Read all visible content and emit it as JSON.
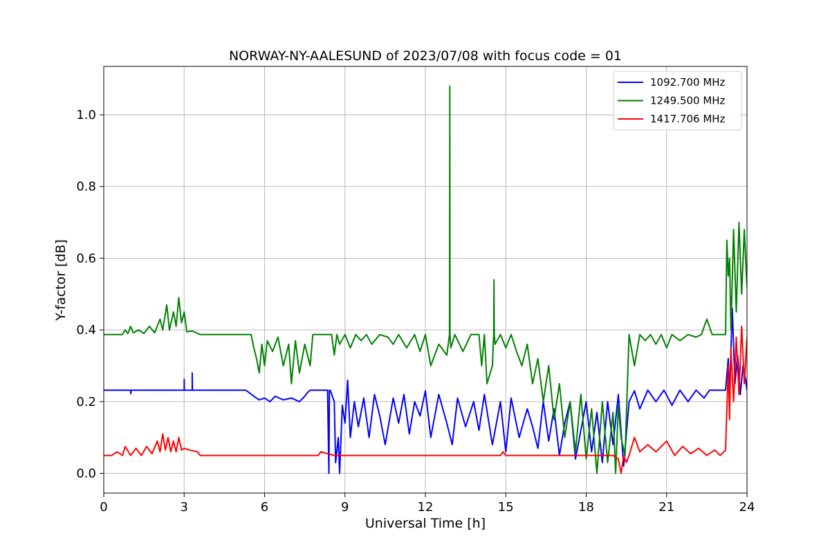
{
  "chart_data": {
    "type": "line",
    "title": "NORWAY-NY-AALESUND of 2023/07/08 with focus code = 01",
    "xlabel": "Universal Time [h]",
    "ylabel": "Y-factor [dB]",
    "xlim": [
      0,
      24
    ],
    "ylim": [
      -0.055,
      1.135
    ],
    "xticks": [
      0,
      3,
      6,
      9,
      12,
      15,
      18,
      21,
      24
    ],
    "xtick_labels": [
      "0",
      "3",
      "6",
      "9",
      "12",
      "15",
      "18",
      "21",
      "24"
    ],
    "yticks": [
      0.0,
      0.2,
      0.4,
      0.6,
      0.8,
      1.0
    ],
    "ytick_labels": [
      "0.0",
      "0.2",
      "0.4",
      "0.6",
      "0.8",
      "1.0"
    ],
    "grid": true,
    "legend_position": "top-right",
    "series": [
      {
        "name": "1092.700 MHz",
        "color": "#0000ff",
        "x": [
          0,
          1.0,
          1.01,
          1.02,
          3.0,
          3.0,
          3.01,
          3.3,
          3.3,
          3.31,
          5.3,
          5.6,
          5.8,
          6.0,
          6.2,
          6.4,
          6.7,
          7.0,
          7.3,
          7.5,
          7.6,
          7.7,
          8.0,
          8.35,
          8.4,
          8.42,
          8.45,
          8.6,
          8.65,
          8.75,
          8.8,
          8.9,
          9.0,
          9.1,
          9.2,
          9.35,
          9.5,
          9.7,
          9.9,
          10.1,
          10.3,
          10.5,
          10.8,
          11.0,
          11.2,
          11.4,
          11.6,
          11.8,
          12.0,
          12.2,
          12.5,
          12.8,
          13.0,
          13.2,
          13.5,
          13.8,
          14.0,
          14.2,
          14.5,
          14.8,
          15.0,
          15.2,
          15.5,
          15.8,
          16.0,
          16.2,
          16.4,
          16.6,
          16.8,
          17.0,
          17.2,
          17.4,
          17.6,
          17.8,
          18.0,
          18.2,
          18.4,
          18.6,
          18.8,
          19.0,
          19.2,
          19.4,
          19.6,
          19.8,
          20.0,
          20.3,
          20.6,
          20.9,
          21.2,
          21.5,
          21.8,
          22.1,
          22.4,
          22.6,
          22.8,
          23.0,
          23.2,
          23.3,
          23.35,
          23.45,
          23.55,
          23.65,
          23.75,
          23.85,
          23.95,
          24.0
        ],
        "y": [
          0.232,
          0.232,
          0.222,
          0.232,
          0.232,
          0.262,
          0.232,
          0.232,
          0.28,
          0.232,
          0.232,
          0.215,
          0.205,
          0.21,
          0.2,
          0.215,
          0.205,
          0.21,
          0.2,
          0.215,
          0.225,
          0.232,
          0.232,
          0.232,
          0.0,
          0.232,
          0.232,
          0.2,
          0.03,
          0.1,
          0.0,
          0.19,
          0.14,
          0.26,
          0.1,
          0.2,
          0.13,
          0.21,
          0.1,
          0.22,
          0.16,
          0.08,
          0.21,
          0.14,
          0.22,
          0.11,
          0.2,
          0.16,
          0.23,
          0.1,
          0.22,
          0.14,
          0.08,
          0.21,
          0.13,
          0.2,
          0.12,
          0.22,
          0.08,
          0.2,
          0.06,
          0.21,
          0.1,
          0.18,
          0.13,
          0.07,
          0.2,
          0.09,
          0.18,
          0.05,
          0.14,
          0.2,
          0.04,
          0.12,
          0.2,
          0.06,
          0.17,
          0.03,
          0.2,
          0.08,
          0.22,
          0.02,
          0.2,
          0.23,
          0.18,
          0.232,
          0.2,
          0.232,
          0.19,
          0.232,
          0.2,
          0.232,
          0.21,
          0.232,
          0.232,
          0.232,
          0.232,
          0.32,
          0.22,
          0.46,
          0.25,
          0.33,
          0.22,
          0.3,
          0.26,
          0.232
        ]
      },
      {
        "name": "1249.500 MHz",
        "color": "#008000",
        "x": [
          0,
          0.7,
          0.8,
          0.9,
          1.0,
          1.1,
          1.3,
          1.5,
          1.7,
          1.9,
          2.1,
          2.2,
          2.35,
          2.45,
          2.6,
          2.7,
          2.8,
          2.9,
          3.0,
          3.1,
          3.3,
          3.6,
          5.0,
          5.5,
          5.6,
          5.7,
          5.8,
          5.9,
          6.0,
          6.1,
          6.3,
          6.5,
          6.7,
          6.9,
          7.0,
          7.15,
          7.3,
          7.5,
          7.7,
          7.8,
          8.2,
          8.5,
          8.6,
          8.7,
          8.8,
          9.0,
          9.2,
          9.4,
          9.6,
          9.8,
          10.0,
          10.3,
          10.6,
          10.8,
          11.0,
          11.3,
          11.6,
          11.8,
          12.0,
          12.2,
          12.5,
          12.8,
          12.9,
          12.91,
          12.92,
          12.95,
          13.1,
          13.4,
          13.7,
          14.0,
          14.1,
          14.2,
          14.3,
          14.5,
          14.55,
          14.56,
          14.57,
          14.6,
          14.8,
          15.0,
          15.2,
          15.4,
          15.6,
          15.8,
          16.0,
          16.2,
          16.4,
          16.6,
          16.8,
          17.0,
          17.2,
          17.4,
          17.6,
          17.8,
          18.0,
          18.2,
          18.4,
          18.6,
          18.8,
          19.0,
          19.1,
          19.2,
          19.3,
          19.45,
          19.6,
          19.8,
          20.0,
          20.2,
          20.4,
          20.6,
          20.8,
          21.0,
          21.2,
          21.5,
          21.8,
          22.1,
          22.3,
          22.5,
          22.7,
          23.0,
          23.2,
          23.25,
          23.3,
          23.35,
          23.4,
          23.5,
          23.6,
          23.7,
          23.8,
          23.9,
          24.0
        ],
        "y": [
          0.387,
          0.387,
          0.4,
          0.39,
          0.41,
          0.392,
          0.4,
          0.39,
          0.41,
          0.392,
          0.43,
          0.4,
          0.47,
          0.4,
          0.45,
          0.41,
          0.49,
          0.42,
          0.45,
          0.395,
          0.397,
          0.387,
          0.387,
          0.387,
          0.35,
          0.32,
          0.28,
          0.36,
          0.3,
          0.37,
          0.34,
          0.38,
          0.3,
          0.36,
          0.25,
          0.37,
          0.28,
          0.36,
          0.3,
          0.387,
          0.387,
          0.387,
          0.33,
          0.387,
          0.36,
          0.387,
          0.35,
          0.387,
          0.37,
          0.387,
          0.36,
          0.387,
          0.38,
          0.36,
          0.387,
          0.35,
          0.387,
          0.34,
          0.387,
          0.3,
          0.36,
          0.33,
          0.387,
          1.08,
          0.387,
          0.35,
          0.387,
          0.34,
          0.387,
          0.387,
          0.3,
          0.387,
          0.25,
          0.3,
          0.387,
          0.54,
          0.387,
          0.36,
          0.387,
          0.35,
          0.387,
          0.34,
          0.3,
          0.36,
          0.25,
          0.32,
          0.2,
          0.3,
          0.15,
          0.25,
          0.1,
          0.2,
          0.06,
          0.22,
          0.04,
          0.18,
          0.0,
          0.2,
          0.03,
          0.17,
          0.0,
          0.19,
          0.1,
          0.05,
          0.387,
          0.3,
          0.387,
          0.37,
          0.387,
          0.36,
          0.387,
          0.35,
          0.387,
          0.37,
          0.387,
          0.38,
          0.387,
          0.43,
          0.387,
          0.387,
          0.387,
          0.65,
          0.55,
          0.6,
          0.4,
          0.68,
          0.45,
          0.7,
          0.5,
          0.68,
          0.52
        ]
      },
      {
        "name": "1417.706 MHz",
        "color": "#ff0000",
        "x": [
          0,
          0.3,
          0.5,
          0.7,
          0.8,
          1.0,
          1.2,
          1.4,
          1.6,
          1.8,
          2.0,
          2.1,
          2.2,
          2.3,
          2.4,
          2.5,
          2.6,
          2.7,
          2.8,
          2.9,
          3.0,
          3.2,
          3.5,
          3.6,
          4.0,
          5.0,
          5.3,
          7.0,
          8.0,
          8.1,
          8.6,
          8.8,
          9.0,
          10.0,
          14.8,
          14.9,
          15.0,
          19.0,
          19.2,
          19.3,
          19.4,
          19.5,
          19.6,
          19.8,
          20.0,
          20.3,
          20.6,
          21.0,
          21.3,
          21.6,
          21.9,
          22.2,
          22.5,
          22.8,
          23.0,
          23.2,
          23.3,
          23.35,
          23.4,
          23.5,
          23.6,
          23.7,
          23.8,
          23.9,
          24.0
        ],
        "y": [
          0.05,
          0.05,
          0.06,
          0.05,
          0.075,
          0.05,
          0.07,
          0.05,
          0.075,
          0.055,
          0.09,
          0.06,
          0.11,
          0.065,
          0.1,
          0.06,
          0.09,
          0.06,
          0.1,
          0.065,
          0.07,
          0.065,
          0.06,
          0.05,
          0.05,
          0.05,
          0.05,
          0.05,
          0.05,
          0.06,
          0.05,
          0.05,
          0.05,
          0.05,
          0.05,
          0.06,
          0.05,
          0.05,
          0.04,
          0.0,
          0.05,
          0.03,
          0.05,
          0.1,
          0.06,
          0.08,
          0.06,
          0.09,
          0.05,
          0.075,
          0.055,
          0.07,
          0.05,
          0.065,
          0.05,
          0.065,
          0.3,
          0.15,
          0.35,
          0.2,
          0.38,
          0.22,
          0.41,
          0.25,
          0.38
        ]
      }
    ]
  }
}
